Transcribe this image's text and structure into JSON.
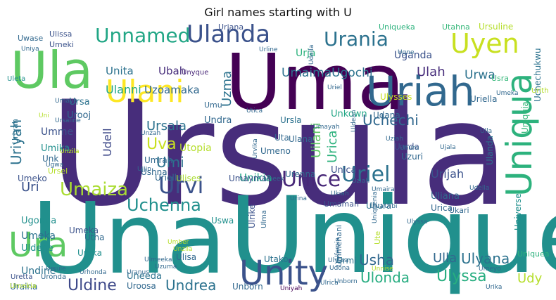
{
  "chart_data": {
    "type": "wordcloud",
    "title": "Girl names starting with U",
    "colormap": "viridis",
    "words": [
      {
        "text": "Ursula",
        "color": "#472d7b"
      },
      {
        "text": "Unique",
        "color": "#21908d"
      },
      {
        "text": "Una",
        "color": "#21908d"
      },
      {
        "text": "Uma",
        "color": "#440154"
      },
      {
        "text": "Ula",
        "color": "#5ec962"
      },
      {
        "text": "Uriah",
        "color": "#31688e"
      },
      {
        "text": "Uniqua",
        "color": "#2db27d"
      },
      {
        "text": "Unity",
        "color": "#3b528b"
      },
      {
        "text": "Ura",
        "color": "#5ec962"
      },
      {
        "text": "Ulani",
        "color": "#fde725"
      },
      {
        "text": "Ulanda",
        "color": "#3b528b"
      },
      {
        "text": "Uyen",
        "color": "#c8e020"
      },
      {
        "text": "Unnamed",
        "color": "#21a685"
      },
      {
        "text": "Urania",
        "color": "#2c728e"
      },
      {
        "text": "Uriel",
        "color": "#2c728e"
      },
      {
        "text": "Unice",
        "color": "#482878"
      },
      {
        "text": "Urvi",
        "color": "#3b528b"
      },
      {
        "text": "Umaiza",
        "color": "#aadc32"
      },
      {
        "text": "Uchenna",
        "color": "#21908d"
      },
      {
        "text": "Ulyssa",
        "color": "#28ae80"
      },
      {
        "text": "Uldine",
        "color": "#3e4989"
      },
      {
        "text": "Undrea",
        "color": "#2c728e"
      },
      {
        "text": "Ulonda",
        "color": "#27ad81"
      },
      {
        "text": "Usha",
        "color": "#31688e"
      },
      {
        "text": "Ulyana",
        "color": "#2c728e"
      },
      {
        "text": "Ulla",
        "color": "#31688e"
      },
      {
        "text": "Udy",
        "color": "#b5de2b"
      },
      {
        "text": "Uriyah",
        "color": "#2c728e"
      },
      {
        "text": "Uzma",
        "color": "#2c728e"
      },
      {
        "text": "Uchechi",
        "color": "#31688e"
      },
      {
        "text": "Urica",
        "color": "#2db27d"
      },
      {
        "text": "Uilani",
        "color": "#5ec962"
      },
      {
        "text": "Ursala",
        "color": "#2c728e"
      },
      {
        "text": "Uva",
        "color": "#c8e020"
      },
      {
        "text": "Umi",
        "color": "#2c728e"
      },
      {
        "text": "Udell",
        "color": "#3e4989"
      },
      {
        "text": "Ulanni",
        "color": "#21a685"
      },
      {
        "text": "Uzoamaka",
        "color": "#31688e"
      },
      {
        "text": "UmaimaUgochi",
        "color": "#2c728e"
      },
      {
        "text": "Ubah",
        "color": "#472d7b"
      },
      {
        "text": "Ulah",
        "color": "#472d7b"
      },
      {
        "text": "Urwa",
        "color": "#2c728e"
      },
      {
        "text": "Urja",
        "color": "#2db27d"
      },
      {
        "text": "Uganda",
        "color": "#3b528b"
      },
      {
        "text": "Uniquia",
        "color": "#35b779"
      },
      {
        "text": "Uchechukwu",
        "color": "#2c728e"
      },
      {
        "text": "Unikia",
        "color": "#21a685"
      },
      {
        "text": "Urijah",
        "color": "#3b528b"
      },
      {
        "text": "Uri",
        "color": "#3b528b"
      },
      {
        "text": "Unita",
        "color": "#2c728e"
      },
      {
        "text": "Uriana",
        "color": "#3b528b"
      },
      {
        "text": "Utahna",
        "color": "#35b779"
      },
      {
        "text": "Ursuline",
        "color": "#b5de2b"
      },
      {
        "text": "Uniqueka",
        "color": "#2db27d"
      },
      {
        "text": "Ulissa",
        "color": "#3b528b"
      },
      {
        "text": "Uwase",
        "color": "#31688e"
      },
      {
        "text": "Umeki",
        "color": "#3b528b"
      },
      {
        "text": "Unyque",
        "color": "#482878"
      },
      {
        "text": "Ursa",
        "color": "#2c728e"
      },
      {
        "text": "Urooj",
        "color": "#31688e"
      },
      {
        "text": "Umme",
        "color": "#3b528b"
      },
      {
        "text": "Umika",
        "color": "#21908d"
      },
      {
        "text": "Unk",
        "color": "#31688e"
      },
      {
        "text": "Umeko",
        "color": "#3b528b"
      },
      {
        "text": "Ugonna",
        "color": "#21908d"
      },
      {
        "text": "Umeka",
        "color": "#2c728e"
      },
      {
        "text": "Uldene",
        "color": "#21908d"
      },
      {
        "text": "Undine",
        "color": "#2c728e"
      },
      {
        "text": "Uraina",
        "color": "#31688e"
      },
      {
        "text": "Uretta",
        "color": "#3b528b"
      },
      {
        "text": "Uronda",
        "color": "#31688e"
      },
      {
        "text": "Umekia",
        "color": "#b5de2b"
      },
      {
        "text": "Ursule",
        "color": "#31688e"
      },
      {
        "text": "Urhonda",
        "color": "#31688e"
      },
      {
        "text": "Uneeda",
        "color": "#2c728e"
      },
      {
        "text": "Uroosa",
        "color": "#31688e"
      },
      {
        "text": "Ulisa",
        "color": "#31688e"
      },
      {
        "text": "Unborn",
        "color": "#31688e"
      },
      {
        "text": "Uniyah",
        "color": "#440154"
      },
      {
        "text": "Utako",
        "color": "#2c728e"
      },
      {
        "text": "Ummehani",
        "color": "#31688e"
      },
      {
        "text": "Urmi",
        "color": "#2c728e"
      },
      {
        "text": "Uniquea",
        "color": "#2db27d"
      },
      {
        "text": "Ulysses",
        "color": "#c8e020"
      },
      {
        "text": "Unkown",
        "color": "#21a685"
      },
      {
        "text": "Udana",
        "color": "#31688e"
      },
      {
        "text": "Unica",
        "color": "#3b528b"
      },
      {
        "text": "Uzuri",
        "color": "#31688e"
      },
      {
        "text": "Uarda",
        "color": "#3b528b"
      },
      {
        "text": "Urenna",
        "color": "#31688e"
      },
      {
        "text": "Uliana",
        "color": "#31688e"
      },
      {
        "text": "Urica",
        "color": "#31688e"
      },
      {
        "text": "Ukari",
        "color": "#31688e"
      },
      {
        "text": "Uhura",
        "color": "#2c728e"
      },
      {
        "text": "Umamah",
        "color": "#3b528b"
      },
      {
        "text": "Universe",
        "color": "#21908d"
      },
      {
        "text": "Ulanda",
        "color": "#2c728e"
      },
      {
        "text": "Uriella",
        "color": "#31688e"
      },
      {
        "text": "Undra",
        "color": "#31688e"
      },
      {
        "text": "Ursla",
        "color": "#2c728e"
      },
      {
        "text": "Uta",
        "color": "#31688e"
      },
      {
        "text": "Ulana",
        "color": "#31688e"
      },
      {
        "text": "Umeno",
        "color": "#31688e"
      },
      {
        "text": "Utopia",
        "color": "#b5de2b"
      },
      {
        "text": "Umrah",
        "color": "#31688e"
      },
      {
        "text": "Ushna",
        "color": "#31688e"
      },
      {
        "text": "Urielle",
        "color": "#31688e"
      },
      {
        "text": "Ulises",
        "color": "#aadc32"
      },
      {
        "text": "Umayma",
        "color": "#3b528b"
      },
      {
        "text": "Usra",
        "color": "#35b779"
      },
      {
        "text": "Umeka",
        "color": "#3b528b"
      },
      {
        "text": "Ureka",
        "color": "#21908d"
      },
      {
        "text": "Utha",
        "color": "#31688e"
      },
      {
        "text": "Uswa",
        "color": "#21908d"
      },
      {
        "text": "Ulrike",
        "color": "#3b528b"
      },
      {
        "text": "Ulma",
        "color": "#31688e"
      },
      {
        "text": "Ute",
        "color": "#b5de2b"
      },
      {
        "text": "Uriyah",
        "color": "#2c728e"
      },
      {
        "text": "Uleta",
        "color": "#21908d"
      },
      {
        "text": "Urith",
        "color": "#b5de2b"
      },
      {
        "text": "Uniya",
        "color": "#31688e"
      },
      {
        "text": "Udella",
        "color": "#31688e"
      },
      {
        "text": "Urline",
        "color": "#31688e"
      },
      {
        "text": "Ugne",
        "color": "#31688e"
      },
      {
        "text": "Umeka",
        "color": "#31688e"
      },
      {
        "text": "Uriel",
        "color": "#31688e"
      },
      {
        "text": "Umu",
        "color": "#31688e"
      },
      {
        "text": "Uni",
        "color": "#b5de2b"
      },
      {
        "text": "Umaya",
        "color": "#31688e"
      },
      {
        "text": "Ursaline",
        "color": "#31688e"
      },
      {
        "text": "Umayah",
        "color": "#31688e"
      },
      {
        "text": "Uziah",
        "color": "#31688e"
      },
      {
        "text": "Uziah",
        "color": "#31688e"
      },
      {
        "text": "Unzila",
        "color": "#b5de2b"
      },
      {
        "text": "Uldean",
        "color": "#31688e"
      },
      {
        "text": "Unzah",
        "color": "#31688e"
      },
      {
        "text": "Utica",
        "color": "#31688e"
      },
      {
        "text": "Uhuru",
        "color": "#31688e"
      },
      {
        "text": "Ujala",
        "color": "#31688e"
      },
      {
        "text": "Ulla",
        "color": "#31688e"
      },
      {
        "text": "Ugwa",
        "color": "#31688e"
      },
      {
        "text": "Urvika",
        "color": "#31688e"
      },
      {
        "text": "Ujjin",
        "color": "#31688e"
      },
      {
        "text": "Ursel",
        "color": "#b5de2b"
      },
      {
        "text": "Uneek",
        "color": "#31688e"
      },
      {
        "text": "Umaira",
        "color": "#31688e"
      },
      {
        "text": "Udella",
        "color": "#31688e"
      },
      {
        "text": "Urina",
        "color": "#31688e"
      },
      {
        "text": "Ukiah",
        "color": "#31688e"
      },
      {
        "text": "Uniquenia",
        "color": "#31688e"
      },
      {
        "text": "Ulyssa",
        "color": "#31688e"
      },
      {
        "text": "Umber",
        "color": "#b5de2b"
      },
      {
        "text": "Unzila",
        "color": "#b5de2b"
      },
      {
        "text": "Uranus",
        "color": "#31688e"
      },
      {
        "text": "Uzuma",
        "color": "#31688e"
      },
      {
        "text": "Ulmeeka",
        "color": "#31688e"
      },
      {
        "text": "Ufemia",
        "color": "#31688e"
      },
      {
        "text": "Ulyssa",
        "color": "#31688e"
      },
      {
        "text": "Udona",
        "color": "#31688e"
      },
      {
        "text": "Umeyo",
        "color": "#31688e"
      },
      {
        "text": "Urika",
        "color": "#31688e"
      },
      {
        "text": "Unnise",
        "color": "#b5de2b"
      },
      {
        "text": "Ulrica",
        "color": "#31688e"
      },
      {
        "text": "Uiva",
        "color": "#31688e"
      },
      {
        "text": "Urbi",
        "color": "#31688e"
      },
      {
        "text": "Unborn",
        "color": "#31688e"
      },
      {
        "text": "Unzila",
        "color": "#b5de2b"
      }
    ]
  }
}
